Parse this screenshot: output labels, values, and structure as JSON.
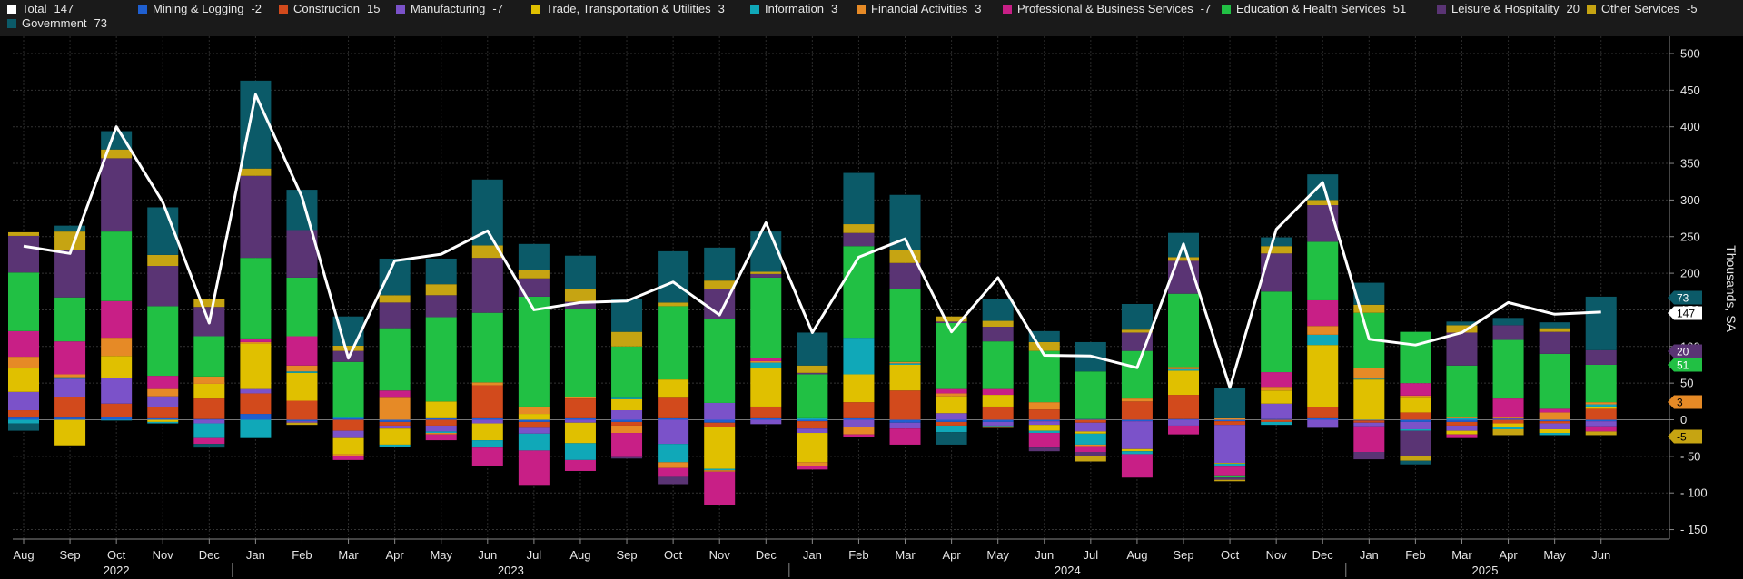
{
  "legend": [
    {
      "label": "Total",
      "value": "147",
      "color": "#ffffff"
    },
    {
      "label": "Mining & Logging",
      "value": "-2",
      "color": "#1f5fd0"
    },
    {
      "label": "Construction",
      "value": "15",
      "color": "#d24a1c"
    },
    {
      "label": "Manufacturing",
      "value": "-7",
      "color": "#7b52c9"
    },
    {
      "label": "Trade, Transportation & Utilities",
      "value": "3",
      "color": "#e0c000"
    },
    {
      "label": "Information",
      "value": "3",
      "color": "#10a8b8"
    },
    {
      "label": "Financial Activities",
      "value": "3",
      "color": "#e68a26"
    },
    {
      "label": "Professional & Business Services",
      "value": "-7",
      "color": "#c81f86"
    },
    {
      "label": "Education & Health Services",
      "value": "51",
      "color": "#21c044"
    },
    {
      "label": "Leisure & Hospitality",
      "value": "20",
      "color": "#5a3474"
    },
    {
      "label": "Other Services",
      "value": "-5",
      "color": "#c6a412"
    },
    {
      "label": "Government",
      "value": "73",
      "color": "#0b5a68"
    }
  ],
  "axis_title": "Thousands, SA",
  "chart_data": {
    "type": "bar",
    "stacked": true,
    "ylabel": "Thousands, SA",
    "ylim": [
      -165,
      510
    ],
    "yticks": [
      -150,
      -100,
      -50,
      0,
      50,
      100,
      150,
      200,
      250,
      300,
      350,
      400,
      450,
      500
    ],
    "grid": true,
    "legend_position": "top",
    "categories": [
      "Aug",
      "Sep",
      "Oct",
      "Nov",
      "Dec",
      "Jan",
      "Feb",
      "Mar",
      "Apr",
      "May",
      "Jun",
      "Jul",
      "Aug",
      "Sep",
      "Oct",
      "Nov",
      "Dec",
      "Jan",
      "Feb",
      "Mar",
      "Apr",
      "May",
      "Jun",
      "Jul",
      "Aug",
      "Sep",
      "Oct",
      "Nov",
      "Dec",
      "Jan",
      "Feb",
      "Mar",
      "Apr",
      "May",
      "Jun"
    ],
    "year_labels": [
      {
        "label": "2022",
        "start": 0,
        "end": 4
      },
      {
        "label": "2023",
        "start": 5,
        "end": 16
      },
      {
        "label": "2024",
        "start": 17,
        "end": 28
      },
      {
        "label": "2025",
        "start": 29,
        "end": 34
      }
    ],
    "series": [
      {
        "name": "Mining & Logging",
        "color": "#1f5fd0",
        "values": [
          3,
          3,
          4,
          2,
          1,
          8,
          -2,
          2,
          -3,
          2,
          2,
          -3,
          2,
          -3,
          2,
          -4,
          2,
          -2,
          2,
          -4,
          -3,
          -3,
          -2,
          1,
          -2,
          1,
          -2,
          1,
          2,
          -1,
          -3,
          -3,
          1,
          -2,
          -2
        ]
      },
      {
        "name": "Construction",
        "color": "#d24a1c",
        "values": [
          10,
          28,
          18,
          15,
          28,
          28,
          26,
          -15,
          -5,
          -8,
          45,
          -8,
          27,
          -5,
          28,
          -6,
          16,
          -10,
          22,
          40,
          -5,
          18,
          14,
          -4,
          25,
          33,
          -5,
          -3,
          15,
          -3,
          10,
          -5,
          -5,
          -3,
          15
        ]
      },
      {
        "name": "Manufacturing",
        "color": "#7b52c9",
        "values": [
          25,
          25,
          35,
          15,
          -5,
          6,
          -2,
          -10,
          -4,
          -8,
          -5,
          -8,
          -4,
          13,
          -33,
          23,
          -6,
          -6,
          -10,
          -8,
          9,
          -5,
          -5,
          -12,
          -38,
          -8,
          -52,
          21,
          -11,
          -5,
          -10,
          -7,
          1,
          -8,
          -7
        ]
      },
      {
        "name": "Trade, Transportation & Utilities",
        "color": "#e0c000",
        "values": [
          32,
          -35,
          30,
          -3,
          20,
          62,
          38,
          -22,
          -22,
          23,
          -23,
          8,
          -28,
          15,
          25,
          -57,
          52,
          -40,
          38,
          35,
          23,
          16,
          -8,
          -3,
          -3,
          33,
          -1,
          18,
          85,
          55,
          20,
          -5,
          -5,
          -5,
          3
        ]
      },
      {
        "name": "Information",
        "color": "#10a8b8",
        "values": [
          -5,
          2,
          -1,
          -2,
          -20,
          -25,
          2,
          2,
          -3,
          -2,
          -10,
          -23,
          -23,
          2,
          -25,
          -2,
          8,
          2,
          50,
          2,
          -9,
          -1,
          -3,
          -15,
          -4,
          2,
          -4,
          -4,
          14,
          1,
          -2,
          2,
          -3,
          -3,
          3
        ]
      },
      {
        "name": "Financial Activities",
        "color": "#e68a26",
        "values": [
          16,
          4,
          25,
          10,
          10,
          2,
          8,
          -3,
          30,
          -2,
          4,
          10,
          2,
          -10,
          -8,
          -2,
          2,
          -5,
          -10,
          2,
          4,
          -2,
          10,
          -2,
          4,
          3,
          2,
          5,
          12,
          15,
          3,
          2,
          2,
          10,
          3
        ]
      },
      {
        "name": "Professional & Business Services",
        "color": "#c81f86",
        "values": [
          35,
          45,
          50,
          18,
          -8,
          5,
          40,
          -5,
          10,
          -8,
          -25,
          -47,
          -15,
          -33,
          -12,
          -45,
          4,
          -5,
          -3,
          -22,
          6,
          8,
          -20,
          -8,
          -32,
          -12,
          -12,
          20,
          35,
          -35,
          17,
          -5,
          25,
          5,
          -7
        ]
      },
      {
        "name": "Education & Health Services",
        "color": "#21c044",
        "values": [
          80,
          60,
          95,
          95,
          55,
          110,
          80,
          75,
          85,
          115,
          95,
          150,
          120,
          70,
          100,
          115,
          110,
          60,
          125,
          100,
          90,
          65,
          70,
          65,
          65,
          100,
          -3,
          110,
          80,
          75,
          70,
          70,
          80,
          75,
          51
        ]
      },
      {
        "name": "Leisure & Hospitality",
        "color": "#5a3474",
        "values": [
          50,
          65,
          100,
          55,
          40,
          112,
          65,
          15,
          35,
          30,
          75,
          25,
          10,
          -2,
          -10,
          40,
          5,
          2,
          18,
          35,
          2,
          20,
          -5,
          -5,
          25,
          45,
          -3,
          52,
          50,
          -10,
          -35,
          45,
          20,
          30,
          20
        ]
      },
      {
        "name": "Other Services",
        "color": "#c6a412",
        "values": [
          5,
          25,
          12,
          15,
          11,
          10,
          -3,
          7,
          10,
          15,
          17,
          12,
          18,
          20,
          5,
          12,
          3,
          10,
          12,
          18,
          7,
          8,
          12,
          -8,
          4,
          5,
          -2,
          10,
          7,
          11,
          -6,
          10,
          -8,
          5,
          -5
        ]
      },
      {
        "name": "Government",
        "color": "#0b5a68",
        "values": [
          -10,
          8,
          25,
          65,
          -5,
          120,
          55,
          40,
          50,
          35,
          90,
          35,
          45,
          45,
          70,
          45,
          55,
          45,
          70,
          75,
          -17,
          30,
          15,
          40,
          35,
          33,
          42,
          12,
          35,
          30,
          -5,
          5,
          10,
          8,
          73
        ]
      }
    ],
    "total": {
      "name": "Total",
      "color": "#ffffff",
      "values": [
        237,
        227,
        400,
        297,
        132,
        444,
        304,
        84,
        217,
        226,
        258,
        150,
        160,
        162,
        188,
        143,
        269,
        119,
        222,
        247,
        120,
        194,
        88,
        87,
        71,
        240,
        44,
        260,
        324,
        110,
        102,
        119,
        160,
        144,
        147
      ]
    },
    "end_labels": [
      {
        "value": 73,
        "text": "73",
        "color": "#0b5a68"
      },
      {
        "value": 147,
        "text": "147",
        "color": "#ffffff"
      },
      {
        "value": 20,
        "text": "20",
        "color": "#5a3474"
      },
      {
        "value": 51,
        "text": "51",
        "color": "#21c044"
      },
      {
        "value": 3,
        "text": "3",
        "color": "#e68a26"
      },
      {
        "value": -5,
        "text": "-5",
        "color": "#c6a412"
      }
    ]
  }
}
